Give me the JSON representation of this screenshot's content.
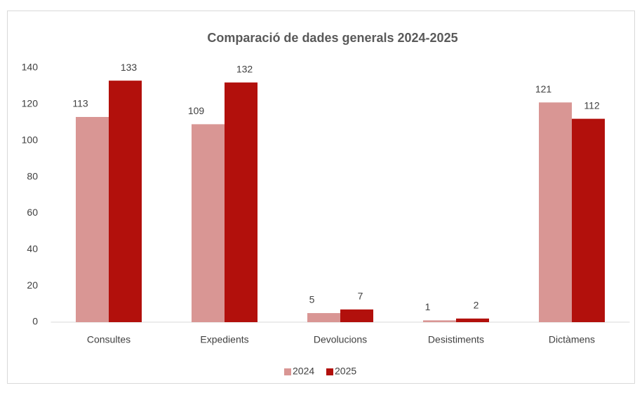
{
  "chart_data": {
    "type": "bar",
    "title": "Comparació de dades generals 2024-2025",
    "categories": [
      "Consultes",
      "Expedients",
      "Devolucions",
      "Desistiments",
      "Dictàmens"
    ],
    "series": [
      {
        "name": "2024",
        "color": "#d99694",
        "values": [
          113,
          109,
          5,
          1,
          121
        ]
      },
      {
        "name": "2025",
        "color": "#b2100c",
        "values": [
          133,
          132,
          7,
          2,
          112
        ]
      }
    ],
    "ylim": [
      0,
      140
    ],
    "yticks": [
      0,
      20,
      40,
      60,
      80,
      100,
      120,
      140
    ],
    "grid": false,
    "legend": "bottom"
  }
}
